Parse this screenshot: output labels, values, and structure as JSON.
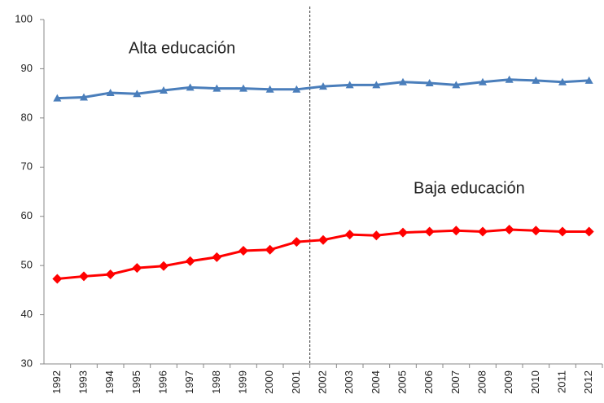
{
  "chart_data": {
    "type": "line",
    "categories": [
      "1992",
      "1993",
      "1994",
      "1995",
      "1996",
      "1997",
      "1998",
      "1999",
      "2000",
      "2001",
      "2002",
      "2003",
      "2004",
      "2005",
      "2006",
      "2007",
      "2008",
      "2009",
      "2010",
      "2011",
      "2012"
    ],
    "series": [
      {
        "name": "Alta educación",
        "color": "#4a7ebb",
        "marker": "triangle",
        "values": [
          84.0,
          84.2,
          85.1,
          84.9,
          85.6,
          86.2,
          86.0,
          86.0,
          85.8,
          85.8,
          86.4,
          86.7,
          86.7,
          87.3,
          87.1,
          86.7,
          87.3,
          87.8,
          87.6,
          87.3,
          87.6
        ]
      },
      {
        "name": "Baja educación",
        "color": "#ff0000",
        "marker": "diamond",
        "values": [
          47.3,
          47.8,
          48.2,
          49.5,
          49.9,
          50.9,
          51.7,
          53.0,
          53.2,
          54.8,
          55.2,
          56.3,
          56.1,
          56.7,
          56.9,
          57.1,
          56.9,
          57.3,
          57.1,
          56.9,
          56.9
        ]
      }
    ],
    "ylim": [
      30,
      100
    ],
    "yticks": [
      30,
      40,
      50,
      60,
      70,
      80,
      90,
      100
    ],
    "grid": false,
    "reference_line": {
      "x": "2002",
      "style": "dashed"
    }
  }
}
